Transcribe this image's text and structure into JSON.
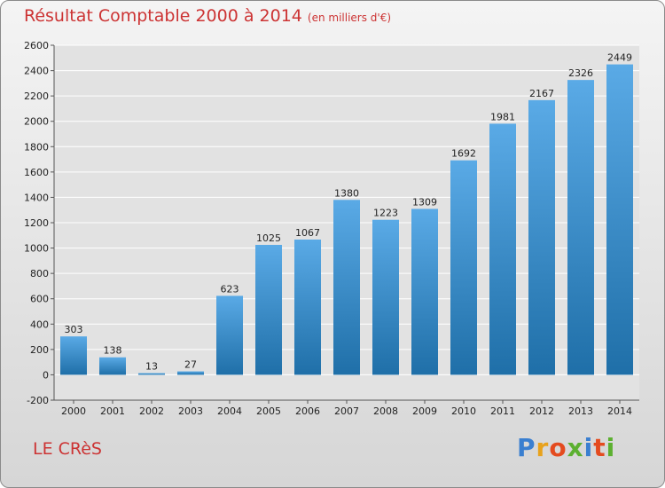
{
  "title": "Résultat Comptable 2000 à 2014",
  "subtitle": "(en milliers d'€)",
  "footer": {
    "name": "LE CRèS",
    "logo": "Proxiti"
  },
  "colors": {
    "title": "#cc3333",
    "bar_top": "#5aaae6",
    "bar_bottom": "#1f6fa8"
  },
  "chart_data": {
    "type": "bar",
    "title": "Résultat Comptable 2000 à 2014",
    "subtitle": "(en milliers d'€)",
    "xlabel": "",
    "ylabel": "",
    "categories": [
      "2000",
      "2001",
      "2002",
      "2003",
      "2004",
      "2005",
      "2006",
      "2007",
      "2008",
      "2009",
      "2010",
      "2011",
      "2012",
      "2013",
      "2014"
    ],
    "values": [
      303,
      138,
      13,
      27,
      623,
      1025,
      1067,
      1380,
      1223,
      1309,
      1692,
      1981,
      2167,
      2326,
      2449
    ],
    "ylim": [
      -200,
      2600
    ],
    "yticks": [
      -200,
      0,
      200,
      400,
      600,
      800,
      1000,
      1200,
      1400,
      1600,
      1800,
      2000,
      2200,
      2400,
      2600
    ],
    "grid": true,
    "data_labels": true
  }
}
